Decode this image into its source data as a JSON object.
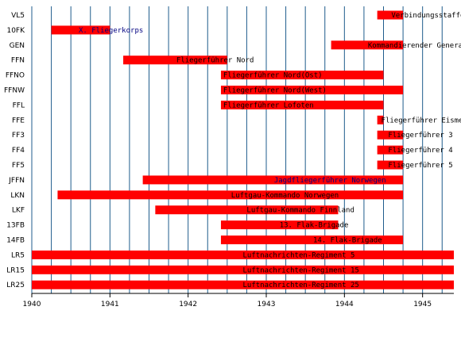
{
  "chart_data": {
    "type": "gantt",
    "title": "",
    "xlabel": "",
    "ylabel": "",
    "xlim": [
      1940,
      1945.4
    ],
    "x_ticks": [
      1940,
      1941,
      1942,
      1943,
      1944,
      1945
    ],
    "grid": "vertical lines every quarter year",
    "colors": {
      "bar": "#ff0000",
      "grid": "#1f5c8c",
      "label_default": "#000000",
      "label_highlight": "#000080"
    },
    "rows": [
      {
        "code": "VL5",
        "label": "Verbindungsstaffel",
        "start": 1944.42,
        "end": 1944.75,
        "label_color": "#000000"
      },
      {
        "code": "10FK",
        "label": "X. Fliegerkorps",
        "start": 1940.25,
        "end": 1941.0,
        "label_color": "#000080"
      },
      {
        "code": "GEN",
        "label": "Kommandierender General der Deutschen Luftwaffe in Norwegen",
        "start": 1943.83,
        "end": 1944.75,
        "label_color": "#000000"
      },
      {
        "code": "FFN",
        "label": "Fliegerführer Nord",
        "start": 1941.17,
        "end": 1942.5,
        "label_color": "#000000"
      },
      {
        "code": "FFNO",
        "label": "Fliegerführer Nord(Ost)",
        "start": 1942.42,
        "end": 1944.5,
        "label_color": "#000000"
      },
      {
        "code": "FFNW",
        "label": "Fliegerführer Nord(West)",
        "start": 1942.42,
        "end": 1944.75,
        "label_color": "#000000"
      },
      {
        "code": "FFL",
        "label": "Fliegerführer Lofoten",
        "start": 1942.42,
        "end": 1944.5,
        "label_color": "#000000"
      },
      {
        "code": "FFE",
        "label": "Fliegerführer Eismeer",
        "start": 1944.42,
        "end": 1944.5,
        "label_color": "#000000"
      },
      {
        "code": "FF3",
        "label": "Fliegerführer 3",
        "start": 1944.42,
        "end": 1944.75,
        "label_color": "#000000"
      },
      {
        "code": "FF4",
        "label": "Fliegerführer 4",
        "start": 1944.42,
        "end": 1944.75,
        "label_color": "#000000"
      },
      {
        "code": "FF5",
        "label": "Fliegerführer 5",
        "start": 1944.42,
        "end": 1944.75,
        "label_color": "#000000"
      },
      {
        "code": "JFFN",
        "label": "Jagdfliegerführer Norwegen",
        "start": 1941.42,
        "end": 1944.75,
        "label_color": "#000080"
      },
      {
        "code": "LKN",
        "label": "Luftgau-Kommando Norwegen",
        "start": 1940.33,
        "end": 1944.75,
        "label_color": "#000000"
      },
      {
        "code": "LKF",
        "label": "Luftgau-Kommando Finnland",
        "start": 1941.58,
        "end": 1943.92,
        "label_color": "#000000"
      },
      {
        "code": "13FB",
        "label": "13. Flak-Brigade",
        "start": 1942.42,
        "end": 1943.92,
        "label_color": "#000000"
      },
      {
        "code": "14FB",
        "label": "14. Flak-Brigade",
        "start": 1942.42,
        "end": 1944.75,
        "label_color": "#000000"
      },
      {
        "code": "LR5",
        "label": "Luftnachrichten-Regiment 5",
        "start": 1940.0,
        "end": 1945.4,
        "label_color": "#000000"
      },
      {
        "code": "LR15",
        "label": "Luftnachrichten-Regiment 15",
        "start": 1940.0,
        "end": 1945.4,
        "label_color": "#000000"
      },
      {
        "code": "LR25",
        "label": "Luftnachrichten-Regiment 25",
        "start": 1940.0,
        "end": 1945.4,
        "label_color": "#000000"
      }
    ]
  }
}
